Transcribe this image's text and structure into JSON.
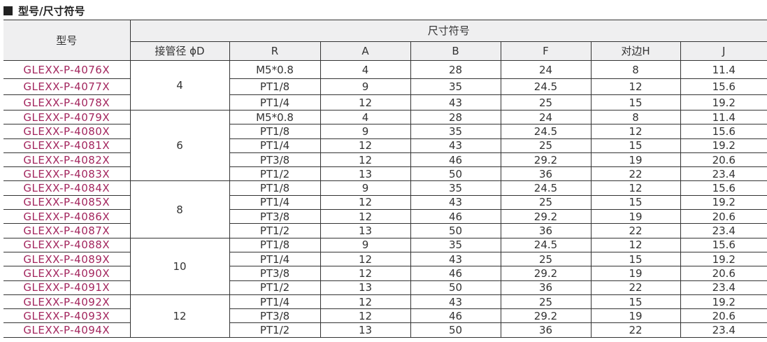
{
  "title": "型号/尺寸符号",
  "header": {
    "model": "型号",
    "dims": "尺寸符号",
    "cols": [
      "接管径 ϕD",
      "R",
      "A",
      "B",
      "F",
      "对边H",
      "J"
    ]
  },
  "groups": [
    {
      "d": "4",
      "rows": [
        [
          "GLEXX-P-4076X",
          "M5*0.8",
          "4",
          "28",
          "24",
          "8",
          "11.4"
        ],
        [
          "GLEXX-P-4077X",
          "PT1/8",
          "9",
          "35",
          "24.5",
          "12",
          "15.6"
        ],
        [
          "GLEXX-P-4078X",
          "PT1/4",
          "12",
          "43",
          "25",
          "15",
          "19.2"
        ]
      ]
    },
    {
      "d": "6",
      "rows": [
        [
          "GLEXX-P-4079X",
          "M5*0.8",
          "4",
          "28",
          "24",
          "8",
          "11.4"
        ],
        [
          "GLEXX-P-4080X",
          "PT1/8",
          "9",
          "35",
          "24.5",
          "12",
          "15.6"
        ],
        [
          "GLEXX-P-4081X",
          "PT1/4",
          "12",
          "43",
          "25",
          "15",
          "19.2"
        ],
        [
          "GLEXX-P-4082X",
          "PT3/8",
          "12",
          "46",
          "29.2",
          "19",
          "20.6"
        ],
        [
          "GLEXX-P-4083X",
          "PT1/2",
          "13",
          "50",
          "36",
          "22",
          "23.4"
        ]
      ]
    },
    {
      "d": "8",
      "rows": [
        [
          "GLEXX-P-4084X",
          "PT1/8",
          "9",
          "35",
          "24.5",
          "12",
          "15.6"
        ],
        [
          "GLEXX-P-4085X",
          "PT1/4",
          "12",
          "43",
          "25",
          "15",
          "19.2"
        ],
        [
          "GLEXX-P-4086X",
          "PT3/8",
          "12",
          "46",
          "29.2",
          "19",
          "20.6"
        ],
        [
          "GLEXX-P-4087X",
          "PT1/2",
          "13",
          "50",
          "36",
          "22",
          "23.4"
        ]
      ]
    },
    {
      "d": "10",
      "rows": [
        [
          "GLEXX-P-4088X",
          "PT1/8",
          "9",
          "35",
          "24.5",
          "12",
          "15.6"
        ],
        [
          "GLEXX-P-4089X",
          "PT1/4",
          "12",
          "43",
          "25",
          "15",
          "19.2"
        ],
        [
          "GLEXX-P-4090X",
          "PT3/8",
          "12",
          "46",
          "29.2",
          "19",
          "20.6"
        ],
        [
          "GLEXX-P-4091X",
          "PT1/2",
          "13",
          "50",
          "36",
          "22",
          "23.4"
        ]
      ]
    },
    {
      "d": "12",
      "rows": [
        [
          "GLEXX-P-4092X",
          "PT1/4",
          "12",
          "43",
          "25",
          "15",
          "19.2"
        ],
        [
          "GLEXX-P-4093X",
          "PT3/8",
          "12",
          "46",
          "29.2",
          "19",
          "20.6"
        ],
        [
          "GLEXX-P-4094X",
          "PT1/2",
          "13",
          "50",
          "36",
          "22",
          "23.4"
        ]
      ]
    }
  ]
}
